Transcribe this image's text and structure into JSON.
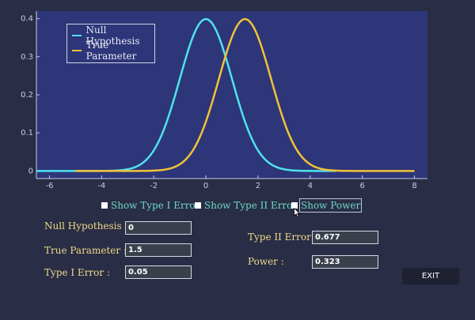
{
  "chart_data": {
    "type": "line",
    "x_ticks": [
      "-6",
      "-4",
      "-2",
      "0",
      "2",
      "4",
      "6",
      "8"
    ],
    "y_ticks": [
      "0",
      "0.1",
      "0.2",
      "0.3",
      "0.4"
    ],
    "xlim": [
      -6.5,
      8.5
    ],
    "ylim": [
      -0.02,
      0.42
    ],
    "legend_position": "top-left",
    "series": [
      {
        "name": "Null Hypothesis",
        "distribution": "normal",
        "mean": 0,
        "sd": 1,
        "x_range": [
          -6.5,
          5.0
        ],
        "color": "#4fe3ec"
      },
      {
        "name": "True Parameter",
        "distribution": "normal",
        "mean": 1.5,
        "sd": 1,
        "x_range": [
          -5.0,
          8.0
        ],
        "color": "#f2c23a"
      }
    ],
    "colors": {
      "axis": "#c8cde6",
      "background": "#2d3678"
    }
  },
  "checkboxes": [
    {
      "label": "Show Type I Error",
      "checked": false
    },
    {
      "label": "Show Type II Error",
      "checked": false
    },
    {
      "label": "Show Power",
      "checked": false
    }
  ],
  "fields": {
    "null_hypothesis": {
      "label": "Null Hypothesis :",
      "value": "0"
    },
    "true_parameter": {
      "label": "True Parameter :",
      "value": "1.5"
    },
    "type_i_error": {
      "label": "Type I Error :",
      "value": "0.05"
    },
    "type_ii_error": {
      "label": "Type II Error :",
      "value": "0.677"
    },
    "power": {
      "label": "Power :",
      "value": "0.323"
    }
  },
  "exit_label": "EXIT",
  "colors": {
    "page_bg": "#292d45",
    "label": "#f0d98a",
    "checkbox_text": "#6fd8c8"
  }
}
